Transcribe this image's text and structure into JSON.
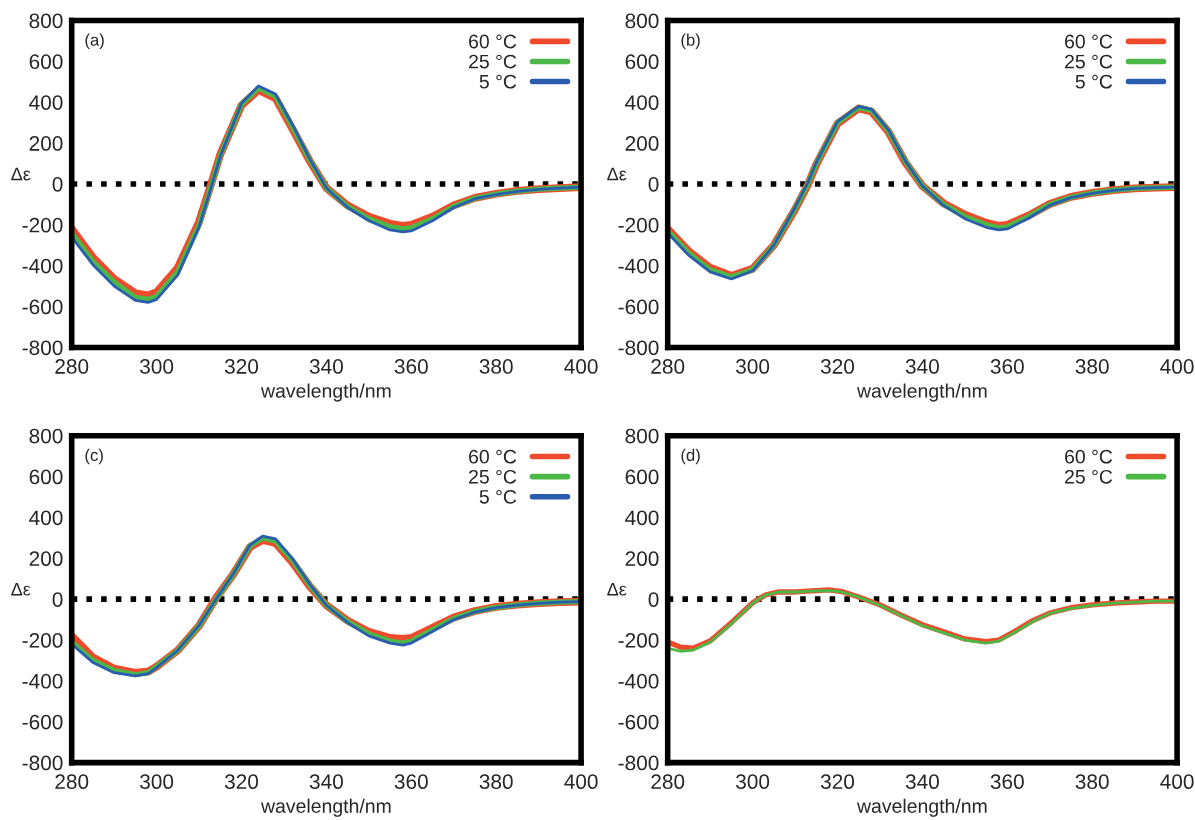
{
  "chart_data": [
    {
      "type": "line",
      "xlabel": "wavelength/nm",
      "ylabel": "Δε",
      "annotations": [
        "(a)"
      ],
      "xlim": [
        280,
        400
      ],
      "ylim": [
        -800,
        800
      ],
      "xticks": [
        280,
        300,
        320,
        340,
        360,
        380,
        400
      ],
      "yticks": [
        -800,
        -600,
        -400,
        -200,
        0,
        200,
        400,
        600,
        800
      ],
      "grid": false,
      "legend": "top right",
      "line_style": "solid",
      "marker": "none",
      "ref_lines": [
        {
          "axis": "y",
          "value": 0,
          "color": "#000000",
          "line_style": "dotted"
        }
      ],
      "x": [
        280,
        285,
        290,
        295,
        298,
        300,
        305,
        310,
        313,
        315,
        320,
        324,
        328,
        332,
        336,
        340,
        345,
        350,
        355,
        358,
        360,
        365,
        370,
        375,
        380,
        385,
        390,
        395,
        400
      ],
      "series": [
        {
          "name": "60 °C",
          "color": "#f04a2c",
          "values": [
            -220,
            -360,
            -465,
            -535,
            -545,
            -530,
            -410,
            -185,
            10,
            145,
            385,
            460,
            420,
            270,
            115,
            -20,
            -105,
            -160,
            -195,
            -205,
            -200,
            -160,
            -105,
            -68,
            -48,
            -34,
            -25,
            -20,
            -15
          ]
        },
        {
          "name": "25 °C",
          "color": "#4cb848",
          "values": [
            -240,
            -380,
            -480,
            -555,
            -565,
            -550,
            -430,
            -200,
            0,
            140,
            390,
            470,
            430,
            280,
            120,
            -20,
            -110,
            -170,
            -210,
            -220,
            -215,
            -170,
            -110,
            -70,
            -50,
            -35,
            -25,
            -20,
            -15
          ]
        },
        {
          "name": "5 °C",
          "color": "#2a5db0",
          "values": [
            -260,
            -395,
            -500,
            -570,
            -580,
            -565,
            -445,
            -210,
            -5,
            135,
            395,
            480,
            440,
            290,
            125,
            -20,
            -115,
            -180,
            -225,
            -235,
            -230,
            -180,
            -115,
            -72,
            -52,
            -36,
            -26,
            -20,
            -15
          ]
        }
      ]
    },
    {
      "type": "line",
      "xlabel": "wavelength/nm",
      "ylabel": "Δε",
      "annotations": [
        "(b)"
      ],
      "xlim": [
        280,
        400
      ],
      "ylim": [
        -800,
        800
      ],
      "xticks": [
        280,
        300,
        320,
        340,
        360,
        380,
        400
      ],
      "yticks": [
        -800,
        -600,
        -400,
        -200,
        0,
        200,
        400,
        600,
        800
      ],
      "grid": false,
      "legend": "top right",
      "line_style": "solid",
      "marker": "none",
      "ref_lines": [
        {
          "axis": "y",
          "value": 0,
          "color": "#000000",
          "line_style": "dotted"
        }
      ],
      "x": [
        280,
        285,
        290,
        295,
        300,
        305,
        310,
        313,
        315,
        320,
        325,
        328,
        332,
        336,
        340,
        345,
        350,
        355,
        358,
        360,
        365,
        370,
        375,
        380,
        385,
        390,
        395,
        400
      ],
      "series": [
        {
          "name": "60 °C",
          "color": "#f04a2c",
          "values": [
            -220,
            -330,
            -410,
            -450,
            -415,
            -300,
            -125,
            -5,
            95,
            295,
            370,
            355,
            255,
            105,
            -10,
            -95,
            -150,
            -190,
            -205,
            -200,
            -155,
            -98,
            -63,
            -44,
            -30,
            -22,
            -18,
            -15
          ]
        },
        {
          "name": "25 °C",
          "color": "#4cb848",
          "values": [
            -230,
            -340,
            -420,
            -455,
            -420,
            -300,
            -120,
            0,
            100,
            300,
            375,
            360,
            260,
            110,
            -10,
            -100,
            -160,
            -200,
            -215,
            -210,
            -160,
            -100,
            -65,
            -45,
            -30,
            -22,
            -18,
            -15
          ]
        },
        {
          "name": "5 °C",
          "color": "#2a5db0",
          "values": [
            -240,
            -350,
            -430,
            -465,
            -425,
            -300,
            -115,
            5,
            105,
            305,
            380,
            365,
            265,
            112,
            -10,
            -105,
            -170,
            -212,
            -225,
            -220,
            -168,
            -105,
            -67,
            -46,
            -31,
            -22,
            -18,
            -15
          ]
        }
      ]
    },
    {
      "type": "line",
      "xlabel": "wavelength/nm",
      "ylabel": "Δε",
      "annotations": [
        "(c)"
      ],
      "xlim": [
        280,
        400
      ],
      "ylim": [
        -800,
        800
      ],
      "xticks": [
        280,
        300,
        320,
        340,
        360,
        380,
        400
      ],
      "yticks": [
        -800,
        -600,
        -400,
        -200,
        0,
        200,
        400,
        600,
        800
      ],
      "grid": false,
      "legend": "top right",
      "line_style": "solid",
      "marker": "none",
      "ref_lines": [
        {
          "axis": "y",
          "value": 0,
          "color": "#000000",
          "line_style": "dotted"
        }
      ],
      "x": [
        280,
        285,
        290,
        295,
        298,
        300,
        305,
        310,
        314,
        318,
        322,
        325,
        328,
        332,
        336,
        340,
        345,
        350,
        355,
        358,
        360,
        365,
        370,
        375,
        380,
        385,
        390,
        395,
        400
      ],
      "series": [
        {
          "name": "60 °C",
          "color": "#f04a2c",
          "values": [
            -180,
            -285,
            -340,
            -360,
            -355,
            -330,
            -250,
            -130,
            5,
            120,
            255,
            290,
            275,
            180,
            65,
            -30,
            -105,
            -160,
            -190,
            -195,
            -190,
            -140,
            -90,
            -58,
            -38,
            -27,
            -20,
            -15,
            -12
          ]
        },
        {
          "name": "25 °C",
          "color": "#4cb848",
          "values": [
            -210,
            -300,
            -350,
            -370,
            -360,
            -330,
            -250,
            -130,
            0,
            120,
            260,
            300,
            285,
            190,
            70,
            -30,
            -110,
            -170,
            -205,
            -215,
            -205,
            -150,
            -95,
            -60,
            -40,
            -28,
            -20,
            -15,
            -12
          ]
        },
        {
          "name": "5 °C",
          "color": "#2a5db0",
          "values": [
            -220,
            -310,
            -360,
            -375,
            -365,
            -335,
            -250,
            -128,
            0,
            122,
            265,
            308,
            295,
            198,
            75,
            -30,
            -115,
            -180,
            -215,
            -225,
            -215,
            -158,
            -100,
            -63,
            -42,
            -29,
            -21,
            -15,
            -12
          ]
        }
      ]
    },
    {
      "type": "line",
      "xlabel": "wavelength/nm",
      "ylabel": "Δε",
      "annotations": [
        "(d)"
      ],
      "xlim": [
        280,
        400
      ],
      "ylim": [
        -800,
        800
      ],
      "xticks": [
        280,
        300,
        320,
        340,
        360,
        380,
        400
      ],
      "yticks": [
        -800,
        -600,
        -400,
        -200,
        0,
        200,
        400,
        600,
        800
      ],
      "grid": false,
      "legend": "top right",
      "line_style": "solid",
      "marker": "none",
      "ref_lines": [
        {
          "axis": "y",
          "value": 0,
          "color": "#000000",
          "line_style": "dotted"
        }
      ],
      "x": [
        280,
        283,
        286,
        290,
        295,
        300,
        303,
        306,
        310,
        315,
        318,
        321,
        325,
        330,
        335,
        340,
        345,
        350,
        355,
        358,
        362,
        366,
        370,
        375,
        380,
        385,
        390,
        395,
        400
      ],
      "series": [
        {
          "name": "60 °C",
          "color": "#f04a2c",
          "values": [
            -210,
            -235,
            -240,
            -205,
            -115,
            -18,
            20,
            35,
            35,
            42,
            45,
            37,
            10,
            -28,
            -78,
            -125,
            -160,
            -195,
            -208,
            -200,
            -155,
            -105,
            -68,
            -42,
            -28,
            -19,
            -14,
            -10,
            -10
          ]
        },
        {
          "name": "25 °C",
          "color": "#4cb848",
          "values": [
            -240,
            -255,
            -250,
            -210,
            -120,
            -20,
            20,
            35,
            35,
            40,
            42,
            35,
            10,
            -30,
            -80,
            -130,
            -165,
            -200,
            -215,
            -205,
            -160,
            -110,
            -70,
            -45,
            -30,
            -20,
            -15,
            -10,
            -10
          ]
        }
      ]
    }
  ]
}
